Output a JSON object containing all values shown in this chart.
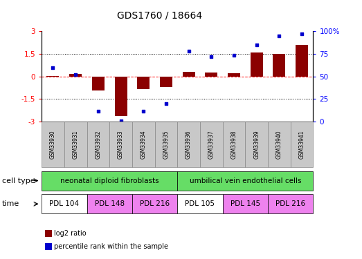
{
  "title": "GDS1760 / 18664",
  "samples": [
    "GSM33930",
    "GSM33931",
    "GSM33932",
    "GSM33933",
    "GSM33934",
    "GSM33935",
    "GSM33936",
    "GSM33937",
    "GSM33938",
    "GSM33939",
    "GSM33940",
    "GSM33941"
  ],
  "log2_ratio": [
    0.05,
    0.15,
    -0.95,
    -2.6,
    -0.85,
    -0.7,
    0.3,
    0.25,
    0.2,
    1.6,
    1.5,
    2.1
  ],
  "percentile_rank": [
    60,
    52,
    12,
    1,
    12,
    20,
    78,
    72,
    73,
    85,
    95,
    97
  ],
  "bar_color": "#8B0000",
  "dot_color": "#0000CD",
  "ylim_left": [
    -3,
    3
  ],
  "ylim_right": [
    0,
    100
  ],
  "yticks_left": [
    -3,
    -1.5,
    0,
    1.5,
    3
  ],
  "yticks_right": [
    0,
    25,
    50,
    75,
    100
  ],
  "ytick_labels_left": [
    "-3",
    "-1.5",
    "0",
    "1.5",
    "3"
  ],
  "ytick_labels_right": [
    "0",
    "25",
    "50",
    "75",
    "100%"
  ],
  "cell_type_groups": [
    {
      "label": "neonatal diploid fibroblasts",
      "start": 0,
      "end": 5,
      "color": "#66DD66"
    },
    {
      "label": "umbilical vein endothelial cells",
      "start": 6,
      "end": 11,
      "color": "#66DD66"
    }
  ],
  "time_groups": [
    {
      "label": "PDL 104",
      "start": 0,
      "end": 1,
      "color": "#FFFFFF"
    },
    {
      "label": "PDL 148",
      "start": 2,
      "end": 3,
      "color": "#EE82EE"
    },
    {
      "label": "PDL 216",
      "start": 4,
      "end": 5,
      "color": "#EE82EE"
    },
    {
      "label": "PDL 105",
      "start": 6,
      "end": 7,
      "color": "#FFFFFF"
    },
    {
      "label": "PDL 145",
      "start": 8,
      "end": 9,
      "color": "#EE82EE"
    },
    {
      "label": "PDL 216",
      "start": 10,
      "end": 11,
      "color": "#EE82EE"
    }
  ],
  "legend_items": [
    {
      "label": "log2 ratio",
      "color": "#8B0000"
    },
    {
      "label": "percentile rank within the sample",
      "color": "#0000CD"
    }
  ],
  "sample_box_color": "#C8C8C8",
  "background_color": "#FFFFFF",
  "title_fontsize": 10,
  "axis_fontsize": 7.5,
  "label_fontsize": 8,
  "bar_width": 0.55
}
